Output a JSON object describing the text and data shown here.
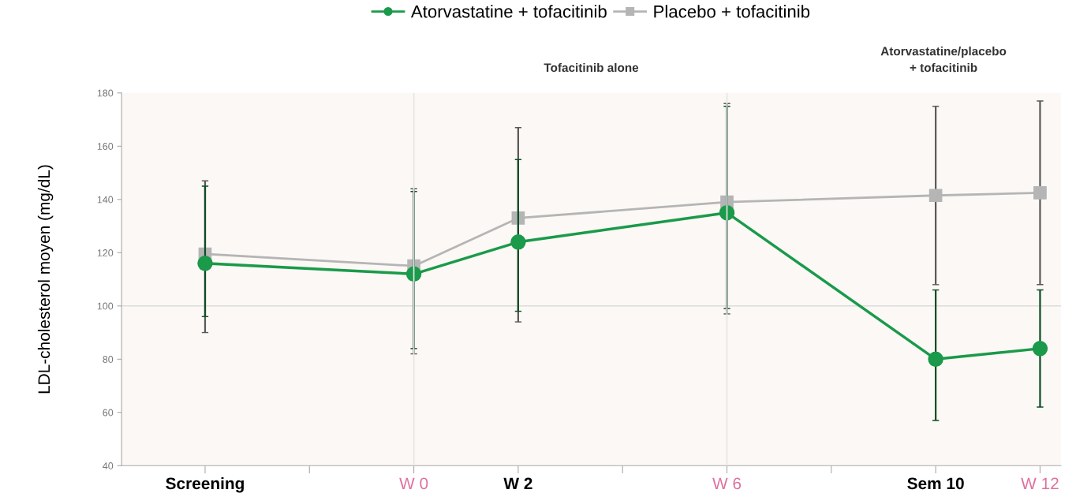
{
  "chart_data": {
    "type": "line",
    "ylabel": "LDL-cholesterol moyen (mg/dL)",
    "annotations": [
      "Tofacitinib alone",
      "Atorvastatine/placebo\n+ tofacitinib"
    ],
    "categories": [
      "Screening",
      null,
      "W 0",
      "W 2",
      null,
      "W 6",
      null,
      "Sem 10",
      "W 12"
    ],
    "series": [
      {
        "name": "Placebo + tofacitinib",
        "color": "#b5b5b5",
        "marker": "square",
        "values": [
          119.5,
          null,
          115,
          133,
          null,
          139,
          null,
          141.5,
          142.5
        ],
        "errors": [
          [
            90,
            147
          ],
          null,
          [
            82,
            144
          ],
          [
            94,
            167
          ],
          null,
          [
            97,
            176
          ],
          null,
          [
            108,
            175
          ],
          [
            108,
            177
          ]
        ]
      },
      {
        "name": "Atorvastatine + tofacitinib",
        "color": "#1a9a4a",
        "marker": "circle",
        "values": [
          116,
          null,
          112,
          124,
          null,
          135,
          null,
          80,
          84
        ],
        "errors": [
          [
            96,
            145
          ],
          null,
          [
            84,
            143
          ],
          [
            98,
            155
          ],
          null,
          [
            99,
            175
          ],
          null,
          [
            57,
            106
          ],
          [
            62,
            106
          ]
        ]
      }
    ],
    "ylim": [
      40,
      180
    ],
    "yticks": [
      40,
      60,
      80,
      100,
      120,
      140,
      160,
      180
    ],
    "ref_lines": [
      {
        "axis": "y",
        "value": 100,
        "color": "#dcdcdc"
      },
      {
        "axis": "x",
        "value": "W 0",
        "color": "#e6e6e6"
      },
      {
        "axis": "x",
        "value": "W 6",
        "color": "#e6e6e6"
      }
    ],
    "grid": false,
    "legend": "top",
    "line_style": "solid"
  }
}
